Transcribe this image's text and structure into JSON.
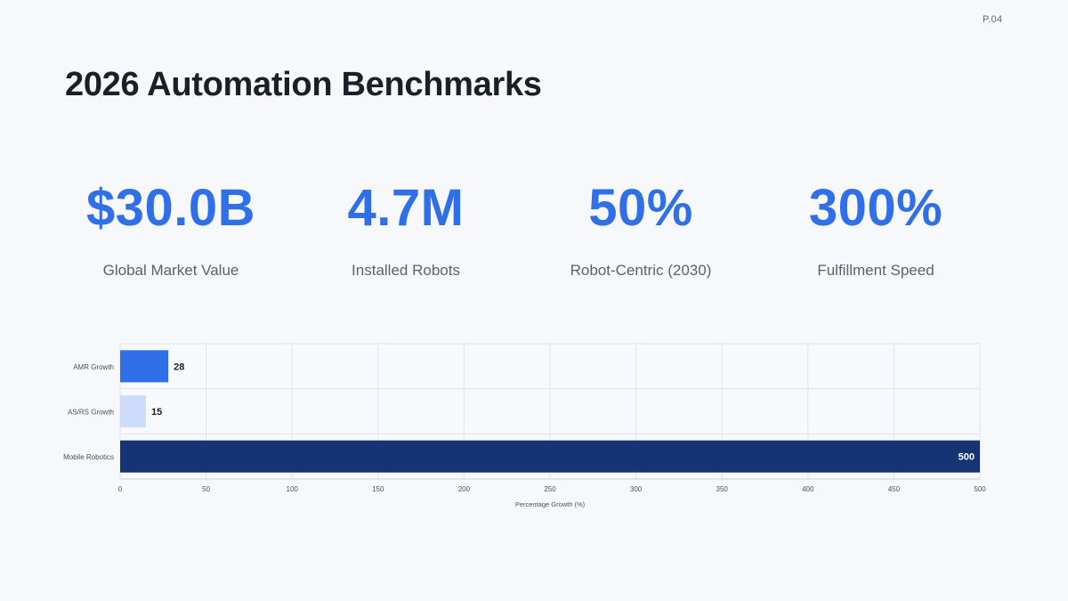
{
  "page": {
    "number": "P.04",
    "title": "2026 Automation Benchmarks"
  },
  "stats": [
    {
      "value": "$30.0B",
      "label": "Global Market Value"
    },
    {
      "value": "4.7M",
      "label": "Installed Robots"
    },
    {
      "value": "50%",
      "label": "Robot-Centric (2030)"
    },
    {
      "value": "300%",
      "label": "Fulfillment Speed"
    }
  ],
  "colors": {
    "accent": "#2f6fe8",
    "bar_light": "#ccdcfa",
    "bar_dark": "#163474",
    "grid": "#e1e5ec"
  },
  "chart_data": {
    "type": "bar",
    "orientation": "horizontal",
    "categories": [
      "AMR Growth",
      "AS/RS Growth",
      "Mobile Robotics"
    ],
    "values": [
      28,
      15,
      500
    ],
    "bar_colors": [
      "#2f6fe8",
      "#ccdcfa",
      "#163474"
    ],
    "xlabel": "Percentage Growth (%)",
    "ylabel": "",
    "xlim": [
      0,
      500
    ],
    "xticks": [
      0,
      50,
      100,
      150,
      200,
      250,
      300,
      350,
      400,
      450,
      500
    ],
    "grid": true,
    "legend": "none"
  }
}
